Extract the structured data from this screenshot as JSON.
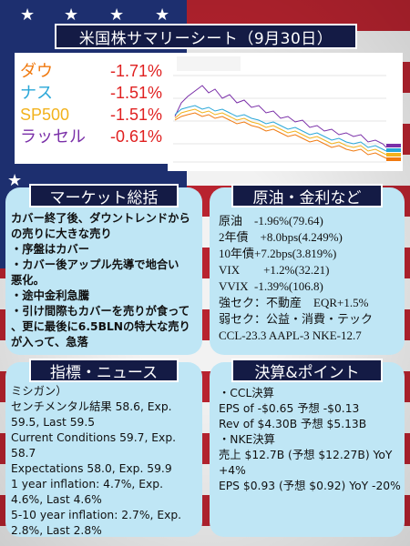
{
  "page_title": "米国株サマリーシート（9月30日）",
  "indices": [
    {
      "name": "ダウ",
      "change": "-1.71%",
      "color": "#f07a10"
    },
    {
      "name": "ナス",
      "change": "-1.51%",
      "color": "#2aa7d8"
    },
    {
      "name": "SP500",
      "change": "-1.51%",
      "color": "#f2b21c"
    },
    {
      "name": "ラッセル",
      "change": "-0.61%",
      "color": "#7a2fa8"
    }
  ],
  "market": {
    "title": "マーケット総括",
    "lines": [
      "カバー終了後、ダウントレンドから",
      "の売りに大きな売り",
      "・序盤はカバー",
      "・カバー後アップル先導で地合い",
      "悪化。",
      "・途中金利急騰",
      "・引け間際もカバーを売りが食って",
      "、更に最後に6.5BLNの特大な売り",
      "が入って、急落"
    ]
  },
  "oil": {
    "title": "原油・金利など",
    "lines": [
      "原油　-1.96%(79.64)",
      "2年債　+8.0bps(4.249%)",
      "10年債+7.2bps(3.819%)",
      "VIX　　+1.2%(32.21)",
      "VVIX  -1.39%(106.8)",
      "強セク：不動産　EQR+1.5%",
      "弱セク：公益・消費・テック",
      "CCL-23.3 AAPL-3 NKE-12.7"
    ]
  },
  "news": {
    "title": "指標・ニュース",
    "lines": [
      "ミシガン）",
      "センチメンタル結果 58.6, Exp.",
      "59.5, Last 59.5",
      "Current Conditions 59.7, Exp.",
      "58.7",
      "Expectations 58.0, Exp. 59.9",
      "1 year inflation: 4.7%, Exp.",
      "4.6%, Last 4.6%",
      "5-10 year inflation: 2.7%, Exp.",
      "2.8%, Last 2.8%"
    ]
  },
  "earnings": {
    "title": "決算&ポイント",
    "lines": [
      "・CCL決算",
      "EPS of -$0.65 予想 -$0.13",
      "Rev of $4.30B 予想 $5.13B",
      "・NKE決算",
      "売上 $12.7B (予想 $12.27B) YoY",
      "+4%",
      "EPS $0.93 (予想 $0.92) YoY -20%"
    ]
  }
}
